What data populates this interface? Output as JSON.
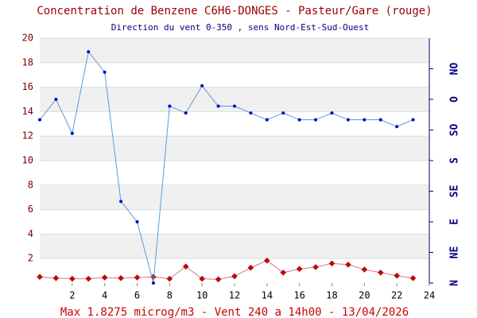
{
  "chart_data": {
    "type": "line",
    "title": "Concentration de Benzene C6H6-DONGES - Pasteur/Gare (rouge)",
    "subtitle": "Direction du vent 0-350 , sens Nord-Est-Sud-Ouest",
    "footer": "Max 1.8275 microg/m3 - Vent 240  a 14h00 - 13/04/2026",
    "x": [
      0,
      1,
      2,
      3,
      4,
      5,
      6,
      7,
      8,
      9,
      10,
      11,
      12,
      13,
      14,
      15,
      16,
      17,
      18,
      19,
      20,
      21,
      22,
      23
    ],
    "xlim": [
      0,
      24
    ],
    "xticks": [
      2,
      4,
      6,
      8,
      10,
      12,
      14,
      16,
      18,
      20,
      22,
      24
    ],
    "ylim": [
      0,
      20
    ],
    "yticks": [
      2,
      4,
      6,
      8,
      10,
      12,
      14,
      16,
      18,
      20
    ],
    "y2lim": [
      0,
      360
    ],
    "y2ticks": [
      {
        "value": 0,
        "label": "N"
      },
      {
        "value": 45,
        "label": "NE"
      },
      {
        "value": 90,
        "label": "E"
      },
      {
        "value": 135,
        "label": "SE"
      },
      {
        "value": 180,
        "label": "S"
      },
      {
        "value": 225,
        "label": "SO"
      },
      {
        "value": 270,
        "label": "O"
      },
      {
        "value": 315,
        "label": "NO"
      }
    ],
    "series": [
      {
        "name": "Benzene",
        "color": "#cc0000",
        "line_color": "#e07090",
        "values": [
          0.5,
          0.4,
          0.35,
          0.35,
          0.45,
          0.4,
          0.45,
          0.5,
          0.35,
          1.35,
          0.35,
          0.3,
          0.55,
          1.25,
          1.8275,
          0.85,
          1.15,
          1.3,
          1.6,
          1.5,
          1.1,
          0.85,
          0.6,
          0.4
        ]
      },
      {
        "name": "Vent",
        "color": "#0000cc",
        "line_color": "#5a9be0",
        "axis": "y2",
        "values": [
          240,
          270,
          220,
          340,
          310,
          120,
          90,
          0,
          260,
          250,
          290,
          260,
          260,
          250,
          240,
          250,
          240,
          240,
          250,
          240,
          240,
          240,
          230,
          240
        ]
      }
    ]
  }
}
